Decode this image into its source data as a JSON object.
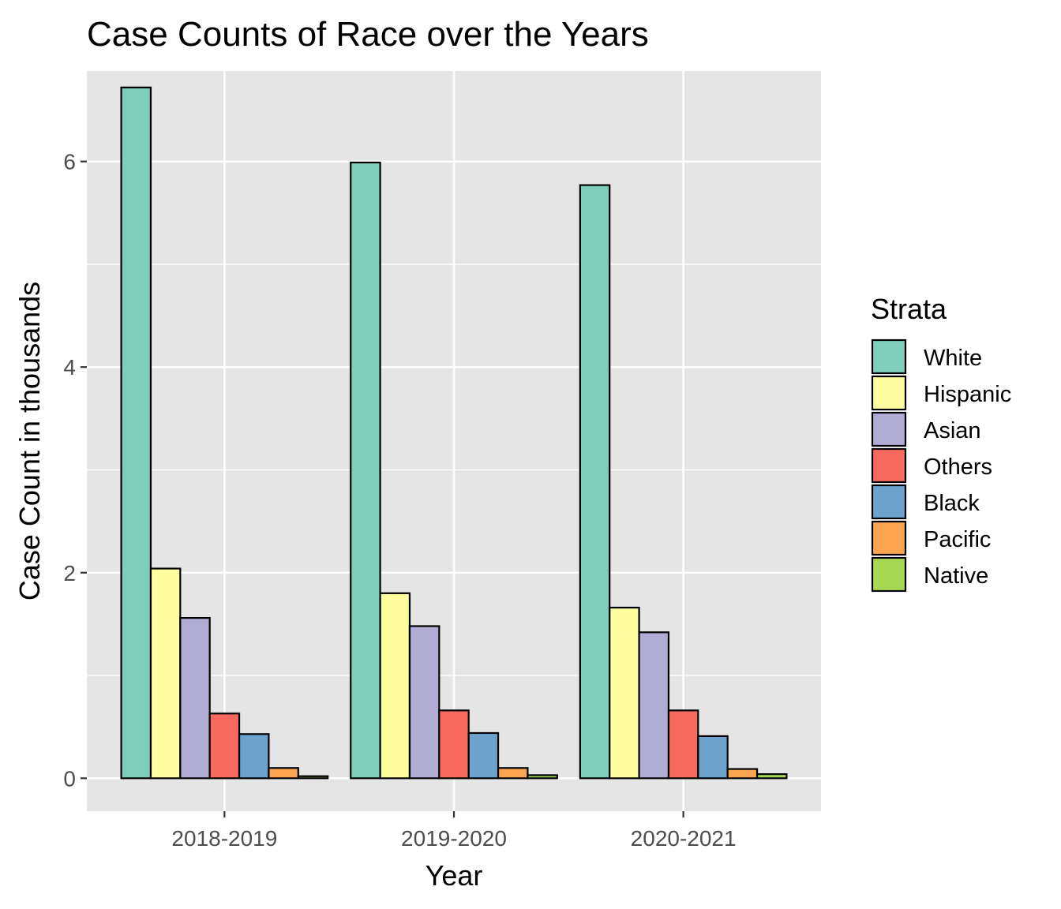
{
  "chart_data": {
    "type": "bar",
    "title": "Case Counts of Race over the Years",
    "xlabel": "Year",
    "ylabel": "Case Count in thousands",
    "categories": [
      "2018-2019",
      "2019-2020",
      "2020-2021"
    ],
    "ylim": [
      -0.32,
      6.88
    ],
    "yticks": [
      0,
      2,
      4,
      6
    ],
    "grid": true,
    "legend": {
      "title": "Strata",
      "position": "right"
    },
    "series": [
      {
        "name": "White",
        "color": "#7FCDBB",
        "values": [
          6.72,
          5.99,
          5.77
        ]
      },
      {
        "name": "Hispanic",
        "color": "#FFFFA0",
        "values": [
          2.04,
          1.8,
          1.66
        ]
      },
      {
        "name": "Asian",
        "color": "#B0ACD3",
        "values": [
          1.56,
          1.48,
          1.42
        ]
      },
      {
        "name": "Others",
        "color": "#F7695F",
        "values": [
          0.63,
          0.66,
          0.66
        ]
      },
      {
        "name": "Black",
        "color": "#6CA2CB",
        "values": [
          0.43,
          0.44,
          0.41
        ]
      },
      {
        "name": "Pacific",
        "color": "#FBA550",
        "values": [
          0.1,
          0.1,
          0.09
        ]
      },
      {
        "name": "Native",
        "color": "#A6D854",
        "values": [
          0.02,
          0.03,
          0.04
        ]
      }
    ]
  }
}
